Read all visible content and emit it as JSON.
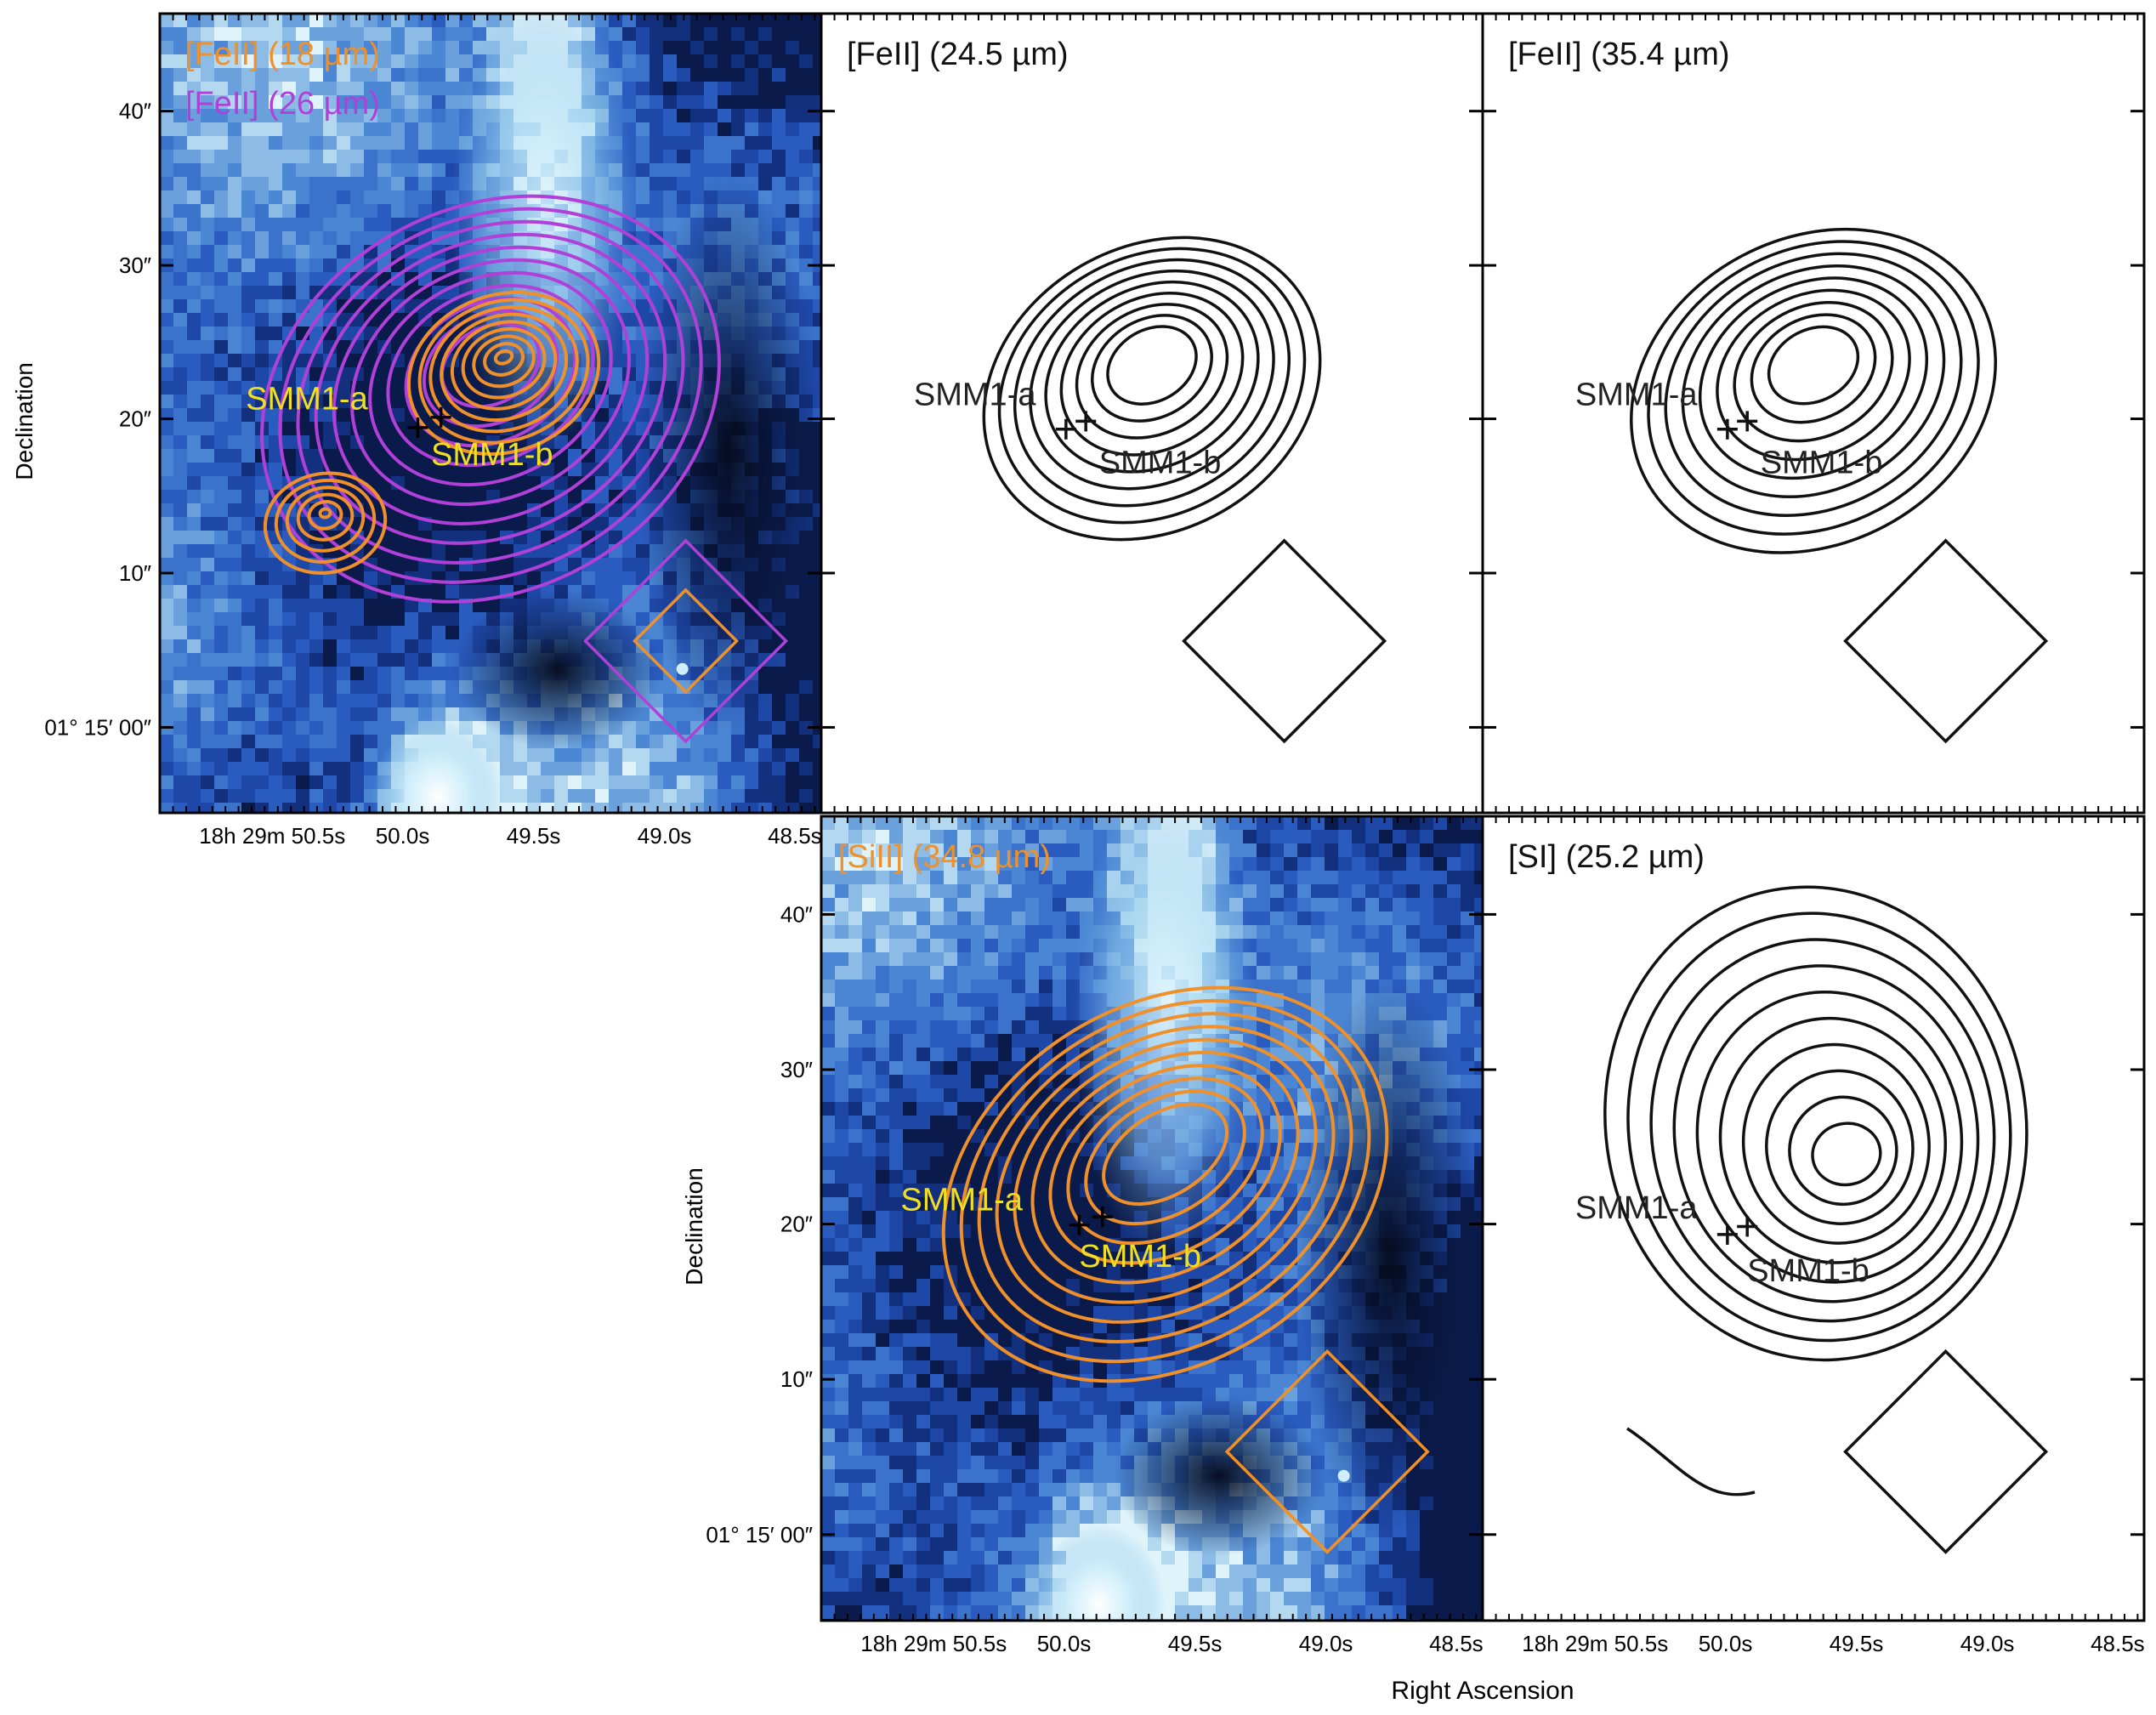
{
  "figure": {
    "ra_tick_labels": [
      "18h 29m 50.5s",
      "50.0s",
      "49.5s",
      "49.0s",
      "48.5s"
    ],
    "dec_tick_labels": [
      "40″",
      "30″",
      "20″",
      "10″",
      "01° 15′ 00″"
    ],
    "xlabel": "Right Ascension",
    "ylabel": "Declination",
    "source_labels": [
      "SMM1-a",
      "SMM1-b"
    ],
    "panels": [
      {
        "id": "p1",
        "type": "image-contour",
        "line1": "[FeII] (18 µm)",
        "line2": "[FeII] (26 µm)",
        "colors": {
          "line1": "#f0902a",
          "line2": "#b040d8"
        }
      },
      {
        "id": "p2",
        "type": "contour",
        "line1": "[FeII] (24.5 µm)",
        "colors": {
          "line1": "#111111"
        }
      },
      {
        "id": "p3",
        "type": "contour",
        "line1": "[FeII] (35.4 µm)",
        "colors": {
          "line1": "#111111"
        }
      },
      {
        "id": "p4",
        "type": "image-contour",
        "line1": "[SiII] (34.8 µm)",
        "colors": {
          "line1": "#f0902a"
        }
      },
      {
        "id": "p5",
        "type": "contour",
        "line1": "[SI] (25.2 µm)",
        "colors": {
          "line1": "#111111"
        }
      }
    ],
    "label_colors": {
      "on_image": "#f0e020",
      "on_white": "#222222"
    }
  }
}
